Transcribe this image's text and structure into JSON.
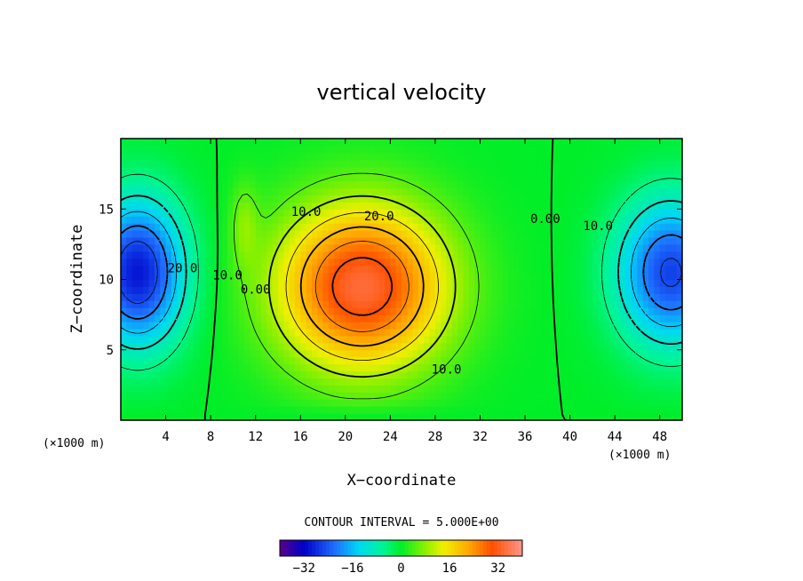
{
  "chart_data": {
    "type": "heatmap",
    "title": "vertical velocity",
    "xlabel": "X−coordinate",
    "ylabel": "Z−coordinate",
    "x_unit_left": "(×1000 m)",
    "x_unit_right": "(×1000 m)",
    "xlim": [
      0,
      50
    ],
    "ylim": [
      0,
      20
    ],
    "xticks": [
      4,
      8,
      12,
      16,
      20,
      24,
      28,
      32,
      36,
      40,
      44,
      48
    ],
    "xtick_labels": [
      "4",
      "8",
      "12",
      "16",
      "20",
      "24",
      "28",
      "32",
      "36",
      "40",
      "44",
      "48"
    ],
    "yticks": [
      5,
      10,
      15
    ],
    "ytick_labels": [
      "5",
      "10",
      "15"
    ],
    "contour_interval_text": "CONTOUR INTERVAL = 5.000E+00",
    "contour_interval": 5,
    "contour_labels": [
      {
        "text": "20.0",
        "x": 23.0,
        "z": 14.2
      },
      {
        "text": "10.0",
        "x": 16.5,
        "z": 14.5
      },
      {
        "text": "10.0",
        "x": 29.0,
        "z": 3.3
      },
      {
        "text": "0.00",
        "x": 37.8,
        "z": 14.0
      },
      {
        "text": "0.00",
        "x": 12.0,
        "z": 9.0
      },
      {
        "text": "10.0",
        "x": 9.5,
        "z": 10.0
      },
      {
        "text": "20.0",
        "x": 5.5,
        "z": 10.5
      },
      {
        "text": "10.0",
        "x": 42.5,
        "z": 13.5
      }
    ],
    "features": [
      {
        "name": "updraft",
        "x": 21.5,
        "z": 9.5,
        "peak": 34
      },
      {
        "name": "downdraft-left",
        "x": 1.5,
        "z": 10.5,
        "peak": -30
      },
      {
        "name": "downdraft-right",
        "x": 49,
        "z": 10.5,
        "peak": -26
      }
    ],
    "colorbar": {
      "min": -40,
      "max": 40,
      "ticks": [
        -32,
        -16,
        0,
        16,
        32
      ],
      "tick_labels": [
        "−32",
        "−16",
        "0",
        "16",
        "32"
      ]
    }
  }
}
